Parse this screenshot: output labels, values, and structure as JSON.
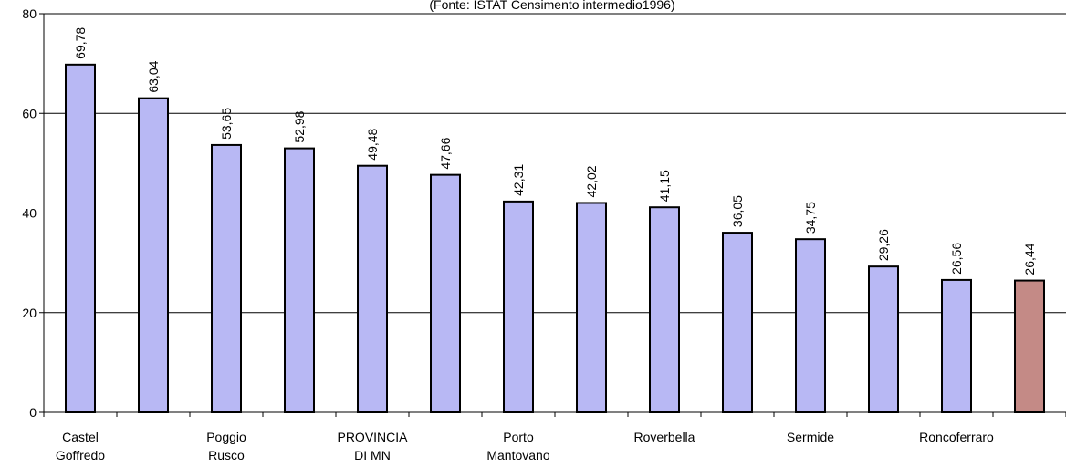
{
  "chart_data": {
    "type": "bar",
    "subtitle": "(Fonte: ISTAT Censimento intermedio1996)",
    "categories": [
      "Castel Goffredo",
      null,
      "Poggio Rusco",
      null,
      "PROVINCIA DI MN",
      null,
      "Porto Mantovano",
      null,
      "Roverbella",
      null,
      "Sermide",
      null,
      "Roncoferraro",
      null
    ],
    "values": [
      69.78,
      63.04,
      53.65,
      52.98,
      49.48,
      47.66,
      42.31,
      42.02,
      41.15,
      36.05,
      34.75,
      29.26,
      26.56,
      26.44
    ],
    "value_labels": [
      "69,78",
      "63,04",
      "53,65",
      "52,98",
      "49,48",
      "47,66",
      "42,31",
      "42,02",
      "41,15",
      "36,05",
      "34,75",
      "29,26",
      "26,56",
      "26,44"
    ],
    "colors": [
      "#b8b8f4",
      "#b8b8f4",
      "#b8b8f4",
      "#b8b8f4",
      "#b8b8f4",
      "#b8b8f4",
      "#b8b8f4",
      "#b8b8f4",
      "#b8b8f4",
      "#b8b8f4",
      "#b8b8f4",
      "#b8b8f4",
      "#b8b8f4",
      "#c48a86"
    ],
    "ylim": [
      0,
      80
    ],
    "yticks": [
      0,
      20,
      40,
      60,
      80
    ],
    "grid": true
  }
}
